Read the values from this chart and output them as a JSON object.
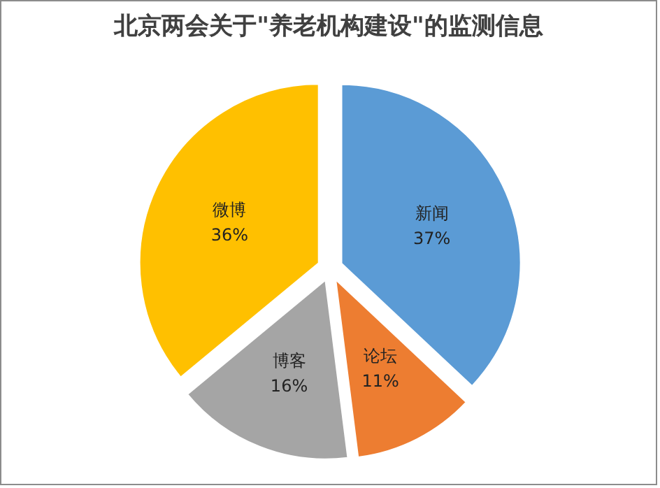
{
  "chart_data": {
    "type": "pie",
    "title": "北京两会关于\"养老机构建设\"的监测信息",
    "categories": [
      "新闻",
      "论坛",
      "博客",
      "微博"
    ],
    "values": [
      37,
      11,
      16,
      36
    ],
    "colors": [
      "#5b9bd5",
      "#ed7d31",
      "#a5a5a5",
      "#ffc000"
    ],
    "value_labels": [
      "37%",
      "11%",
      "16%",
      "36%"
    ],
    "legend": false
  }
}
